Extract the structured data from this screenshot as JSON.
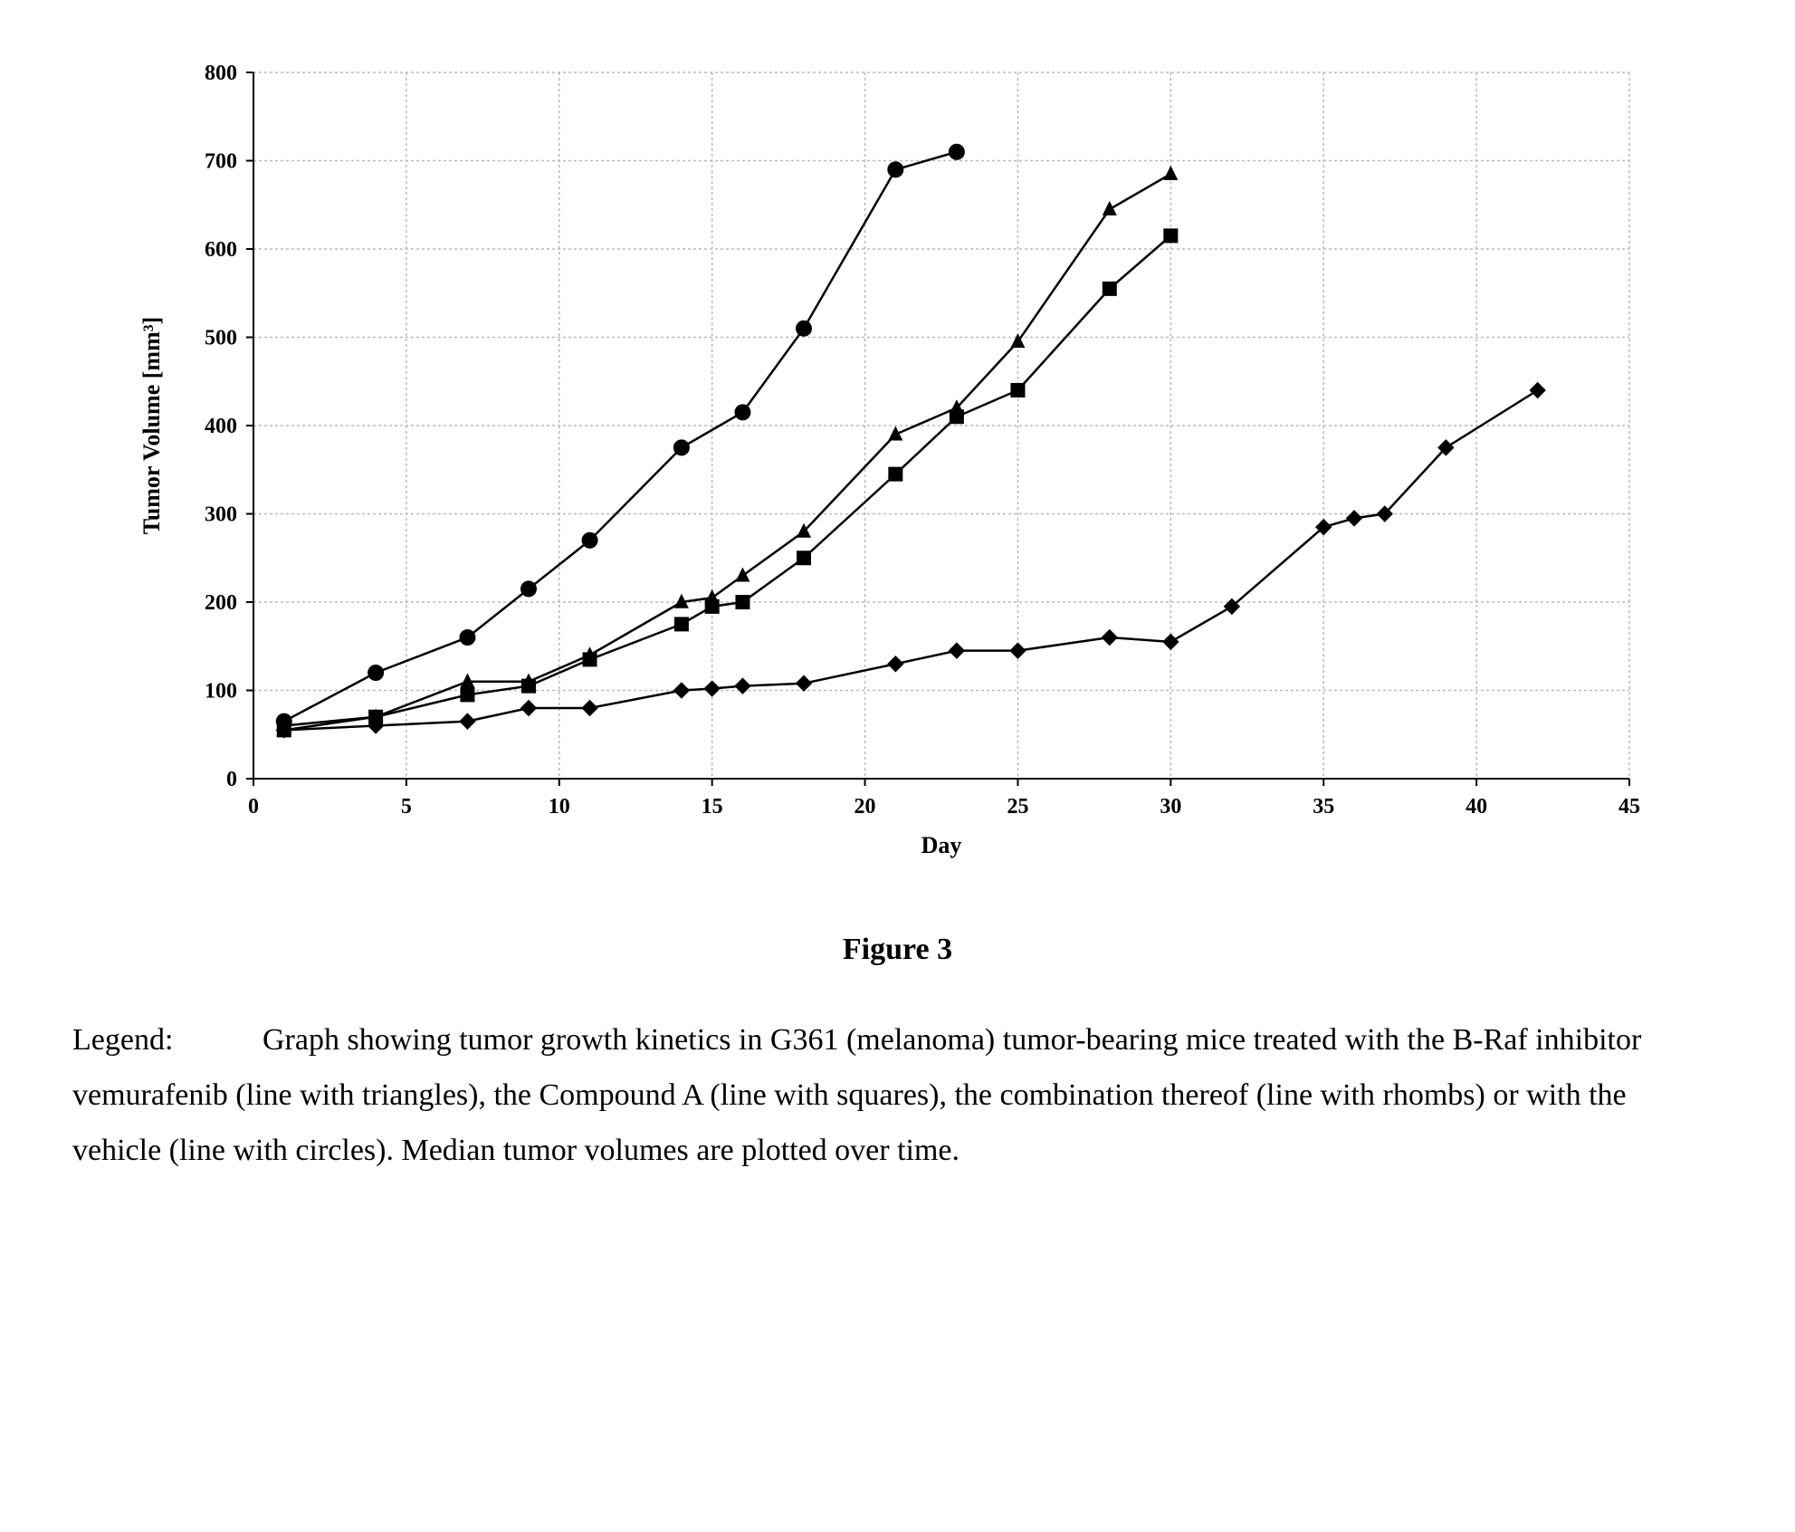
{
  "chart": {
    "type": "line",
    "xlabel": "Day",
    "ylabel": "Tumor Volume [mm³]",
    "xlim": [
      0,
      45
    ],
    "ylim": [
      0,
      800
    ],
    "xtick_step": 5,
    "ytick_step": 100,
    "label_fontsize": 26,
    "tick_fontsize": 24,
    "label_fontfamily": "serif",
    "label_fontweight": "bold",
    "background_color": "#ffffff",
    "grid_color": "#bbbbbb",
    "grid_dash": "3,3",
    "axis_color": "#000000",
    "line_color": "#000000",
    "line_width": 2.5,
    "marker_size_vehicle": 9,
    "marker_size_other": 8,
    "series": [
      {
        "name": "vehicle",
        "marker": "circle",
        "x": [
          1,
          4,
          7,
          9,
          11,
          14,
          16,
          18,
          21,
          23
        ],
        "y": [
          65,
          120,
          160,
          215,
          270,
          375,
          415,
          510,
          690,
          710
        ]
      },
      {
        "name": "vemurafenib",
        "marker": "triangle",
        "x": [
          1,
          4,
          7,
          9,
          11,
          14,
          15,
          16,
          18,
          21,
          23,
          25,
          28,
          30
        ],
        "y": [
          60,
          70,
          110,
          110,
          140,
          200,
          205,
          230,
          280,
          390,
          420,
          495,
          645,
          685
        ]
      },
      {
        "name": "compound-a",
        "marker": "square",
        "x": [
          1,
          4,
          7,
          9,
          11,
          14,
          15,
          16,
          18,
          21,
          23,
          25,
          28,
          30
        ],
        "y": [
          55,
          70,
          95,
          105,
          135,
          175,
          195,
          200,
          250,
          345,
          410,
          440,
          555,
          615
        ]
      },
      {
        "name": "combination",
        "marker": "rhomb",
        "x": [
          1,
          4,
          7,
          9,
          11,
          14,
          15,
          16,
          18,
          21,
          23,
          25,
          28,
          30,
          32,
          35,
          36,
          37,
          39,
          42
        ],
        "y": [
          55,
          60,
          65,
          80,
          80,
          100,
          102,
          105,
          108,
          130,
          145,
          145,
          160,
          155,
          195,
          285,
          295,
          300,
          375,
          440
        ]
      }
    ]
  },
  "figure_title": "Figure 3",
  "legend": {
    "label": "Legend:",
    "text": "Graph showing tumor growth kinetics in G361 (melanoma) tumor-bearing mice treated with the B-Raf inhibitor vemurafenib (line with triangles), the Compound A (line with squares), the combination thereof (line with rhombs) or with the vehicle (line with circles). Median tumor volumes are plotted over time."
  }
}
